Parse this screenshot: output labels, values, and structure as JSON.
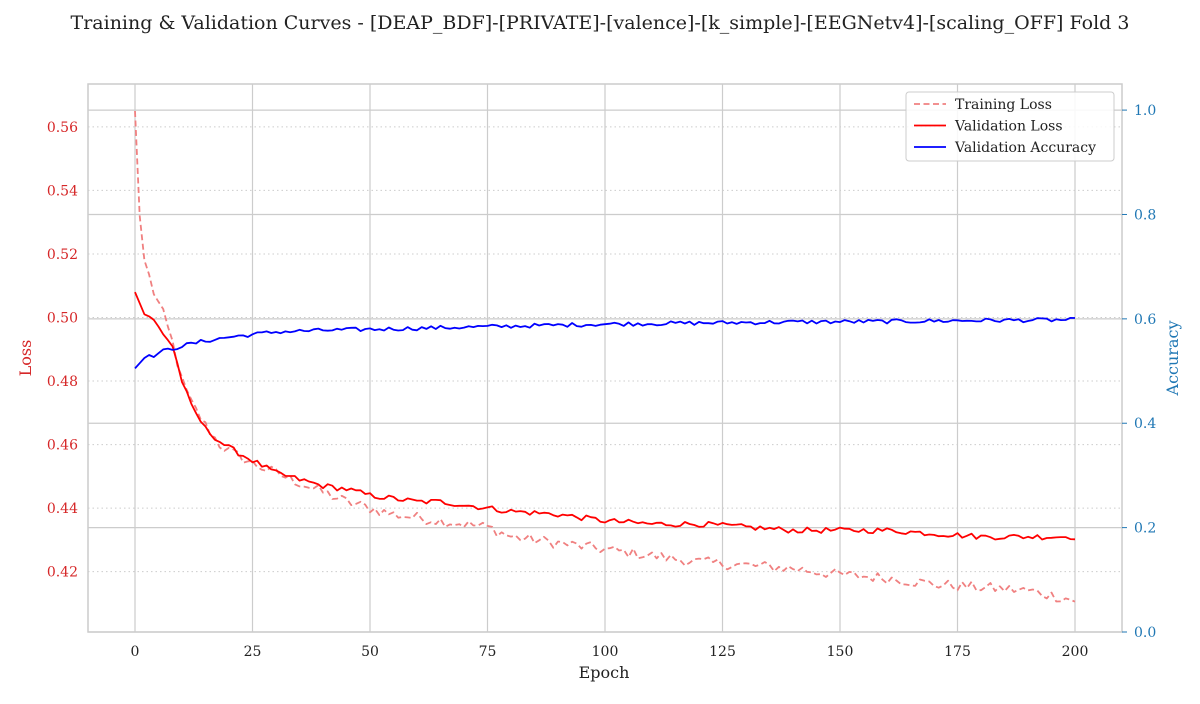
{
  "chart_data": {
    "type": "line",
    "title": "Training & Validation Curves - [DEAP_BDF]-[PRIVATE]-[valence]-[k_simple]-[EEGNetv4]-[scaling_OFF] Fold 3",
    "xlabel": "Epoch",
    "ylabel_left": "Loss",
    "ylabel_right": "Accuracy",
    "xlim": [
      -10,
      210
    ],
    "ylim_left": [
      0.401,
      0.5735
    ],
    "ylim_right": [
      0.0,
      1.05
    ],
    "x_ticks": [
      0,
      25,
      50,
      75,
      100,
      125,
      150,
      175,
      200
    ],
    "y_left_ticks": [
      0.42,
      0.44,
      0.46,
      0.48,
      0.5,
      0.52,
      0.54,
      0.56
    ],
    "y_right_ticks": [
      0.0,
      0.2,
      0.4,
      0.6,
      0.8,
      1.0
    ],
    "grid": true,
    "legend_position": "top-right",
    "colors": {
      "training_loss": "#f08080",
      "validation_loss": "#ff0000",
      "validation_accuracy": "#0000ff",
      "left_axis": "#d62728",
      "right_axis": "#1f77b4"
    },
    "series": [
      {
        "name": "Training Loss",
        "axis": "left",
        "style": "dashed",
        "keypoints": [
          [
            0,
            0.565
          ],
          [
            1,
            0.532
          ],
          [
            2,
            0.518
          ],
          [
            4,
            0.508
          ],
          [
            6,
            0.501
          ],
          [
            8,
            0.492
          ],
          [
            10,
            0.48
          ],
          [
            12,
            0.473
          ],
          [
            15,
            0.466
          ],
          [
            18,
            0.46
          ],
          [
            20,
            0.458
          ],
          [
            25,
            0.454
          ],
          [
            30,
            0.451
          ],
          [
            35,
            0.448
          ],
          [
            40,
            0.445
          ],
          [
            45,
            0.442
          ],
          [
            50,
            0.44
          ],
          [
            55,
            0.438
          ],
          [
            60,
            0.437
          ],
          [
            65,
            0.436
          ],
          [
            70,
            0.435
          ],
          [
            75,
            0.434
          ],
          [
            80,
            0.431
          ],
          [
            90,
            0.429
          ],
          [
            100,
            0.427
          ],
          [
            110,
            0.425
          ],
          [
            120,
            0.423
          ],
          [
            130,
            0.422
          ],
          [
            140,
            0.421
          ],
          [
            150,
            0.419
          ],
          [
            160,
            0.418
          ],
          [
            170,
            0.416
          ],
          [
            180,
            0.415
          ],
          [
            190,
            0.414
          ],
          [
            200,
            0.411
          ]
        ],
        "noise": 0.0017
      },
      {
        "name": "Validation Loss",
        "axis": "left",
        "style": "solid",
        "keypoints": [
          [
            0,
            0.508
          ],
          [
            2,
            0.501
          ],
          [
            4,
            0.499
          ],
          [
            6,
            0.495
          ],
          [
            8,
            0.491
          ],
          [
            10,
            0.48
          ],
          [
            12,
            0.472
          ],
          [
            15,
            0.465
          ],
          [
            18,
            0.461
          ],
          [
            20,
            0.459
          ],
          [
            25,
            0.455
          ],
          [
            30,
            0.451
          ],
          [
            35,
            0.449
          ],
          [
            40,
            0.447
          ],
          [
            45,
            0.446
          ],
          [
            50,
            0.444
          ],
          [
            55,
            0.443
          ],
          [
            60,
            0.442
          ],
          [
            65,
            0.442
          ],
          [
            70,
            0.441
          ],
          [
            75,
            0.44
          ],
          [
            80,
            0.439
          ],
          [
            90,
            0.438
          ],
          [
            100,
            0.436
          ],
          [
            110,
            0.435
          ],
          [
            120,
            0.435
          ],
          [
            130,
            0.434
          ],
          [
            140,
            0.433
          ],
          [
            150,
            0.433
          ],
          [
            160,
            0.433
          ],
          [
            170,
            0.432
          ],
          [
            180,
            0.431
          ],
          [
            190,
            0.431
          ],
          [
            200,
            0.431
          ]
        ],
        "noise": 0.0009
      },
      {
        "name": "Validation Accuracy",
        "axis": "right",
        "style": "solid",
        "keypoints": [
          [
            0,
            0.505
          ],
          [
            2,
            0.525
          ],
          [
            4,
            0.53
          ],
          [
            6,
            0.538
          ],
          [
            8,
            0.543
          ],
          [
            10,
            0.548
          ],
          [
            15,
            0.558
          ],
          [
            20,
            0.565
          ],
          [
            25,
            0.57
          ],
          [
            30,
            0.575
          ],
          [
            40,
            0.578
          ],
          [
            50,
            0.58
          ],
          [
            60,
            0.582
          ],
          [
            70,
            0.584
          ],
          [
            80,
            0.586
          ],
          [
            90,
            0.588
          ],
          [
            100,
            0.59
          ],
          [
            120,
            0.592
          ],
          [
            140,
            0.594
          ],
          [
            160,
            0.595
          ],
          [
            180,
            0.597
          ],
          [
            200,
            0.598
          ]
        ],
        "noise": 0.004
      }
    ]
  }
}
